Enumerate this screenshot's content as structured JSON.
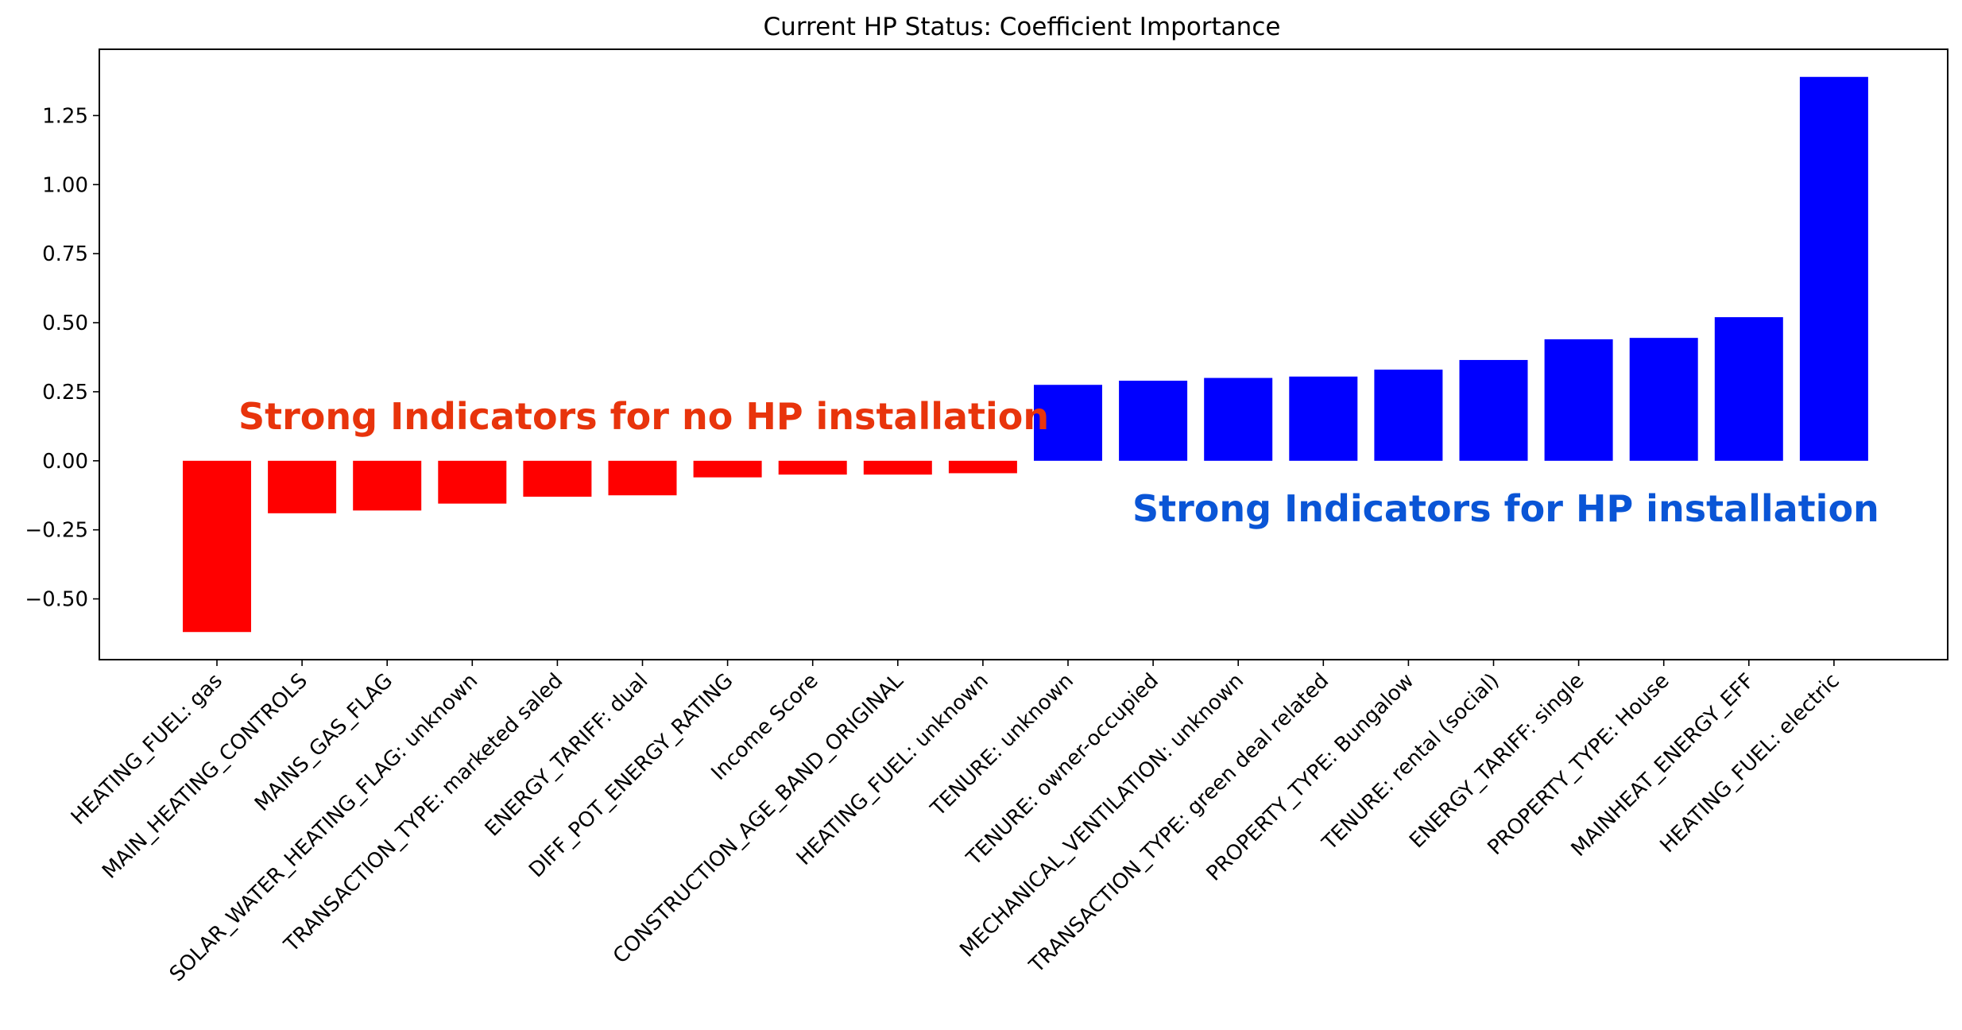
{
  "chart_data": {
    "type": "bar",
    "title": "Current HP Status: Coefficient Importance",
    "xlabel": "",
    "ylabel": "",
    "ylim": [
      -0.72,
      1.49
    ],
    "yticks": [
      -0.5,
      -0.25,
      0.0,
      0.25,
      0.5,
      0.75,
      1.0,
      1.25
    ],
    "ytick_labels": [
      "−0.50",
      "−0.25",
      "0.00",
      "0.25",
      "0.50",
      "0.75",
      "1.00",
      "1.25"
    ],
    "grid": false,
    "categories": [
      "HEATING_FUEL: gas",
      "MAIN_HEATING_CONTROLS",
      "MAINS_GAS_FLAG",
      "SOLAR_WATER_HEATING_FLAG: unknown",
      "TRANSACTION_TYPE: marketed saled",
      "ENERGY_TARIFF: dual",
      "DIFF_POT_ENERGY_RATING",
      "Income Score",
      "CONSTRUCTION_AGE_BAND_ORIGINAL",
      "HEATING_FUEL: unknown",
      "TENURE: unknown",
      "TENURE: owner-occupied",
      "MECHANICAL_VENTILATION: unknown",
      "TRANSACTION_TYPE: green deal related",
      "PROPERTY_TYPE: Bungalow",
      "TENURE: rental (social)",
      "ENERGY_TARIFF: single",
      "PROPERTY_TYPE: House",
      "MAINHEAT_ENERGY_EFF",
      "HEATING_FUEL: electric"
    ],
    "values": [
      -0.62,
      -0.19,
      -0.18,
      -0.155,
      -0.13,
      -0.125,
      -0.06,
      -0.05,
      -0.05,
      -0.045,
      0.275,
      0.29,
      0.3,
      0.305,
      0.33,
      0.365,
      0.44,
      0.445,
      0.52,
      1.39
    ],
    "colors": {
      "negative": "#ff0000",
      "positive": "#0000ff"
    },
    "annotations": [
      {
        "text": "Strong Indicators for no HP installation",
        "color": "#e8340c"
      },
      {
        "text": "Strong Indicators for HP installation",
        "color": "#0a55d6"
      }
    ]
  }
}
